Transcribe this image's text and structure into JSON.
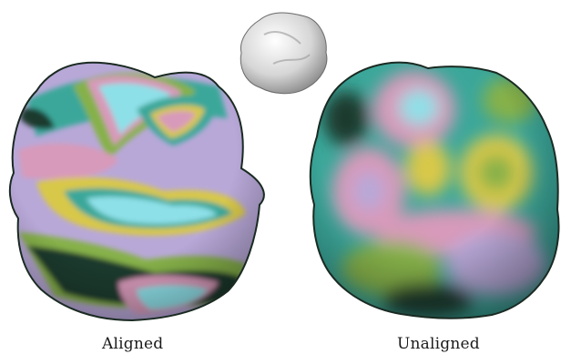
{
  "figure": {
    "captions": {
      "left": "Aligned",
      "right": "Unaligned"
    },
    "icons": {
      "reference": "reference-shape-icon",
      "left": "aligned-shape-icon",
      "right": "unaligned-shape-icon"
    },
    "colors": {
      "background": "#ffffff",
      "dark": "#1f3a2e",
      "teal": "#3ba79a",
      "green": "#86b14a",
      "yellow": "#d8c84a",
      "pink": "#d89aba",
      "lavender": "#b8a8d8",
      "cyan": "#8ee0e8",
      "grey": "#c8c8c8"
    }
  }
}
